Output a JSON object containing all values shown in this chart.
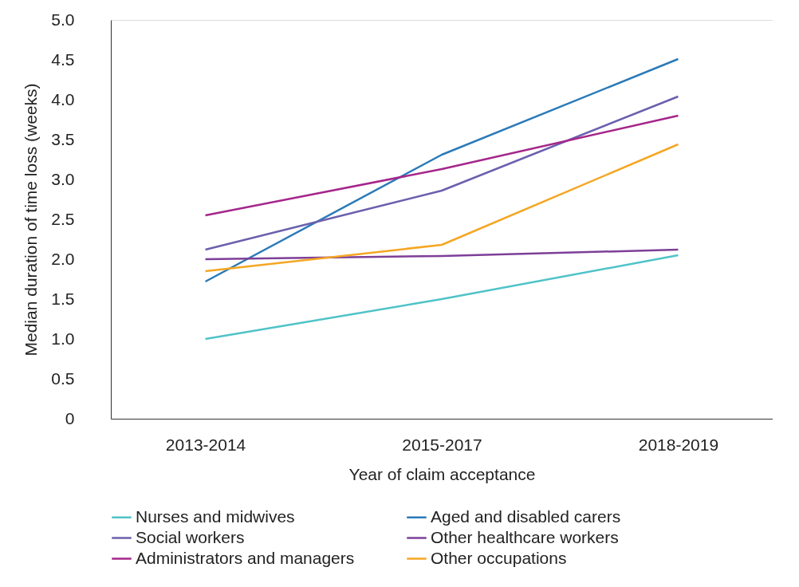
{
  "chart_data": {
    "type": "line",
    "xlabel": "Year of claim acceptance",
    "ylabel": "Median duration of time loss (weeks)",
    "categories": [
      "2013-2014",
      "2015-2017",
      "2018-2019"
    ],
    "ylim": [
      0,
      5
    ],
    "yticks": [
      {
        "value": 0,
        "label": "0"
      },
      {
        "value": 0.5,
        "label": "0.5"
      },
      {
        "value": 1,
        "label": "1.0"
      },
      {
        "value": 1.5,
        "label": "1.5"
      },
      {
        "value": 2,
        "label": "2.0"
      },
      {
        "value": 2.5,
        "label": "2.5"
      },
      {
        "value": 3,
        "label": "3.0"
      },
      {
        "value": 3.5,
        "label": "3.5"
      },
      {
        "value": 4,
        "label": "4.0"
      },
      {
        "value": 4.5,
        "label": "4.5"
      },
      {
        "value": 5,
        "label": "5.0"
      }
    ],
    "grid": false,
    "legend": "bottom",
    "marker": "none",
    "line_style": "solid",
    "series": [
      {
        "name": "Nurses and midwives",
        "color": "#4fc3c8",
        "values": [
          1.0,
          1.5,
          2.05
        ]
      },
      {
        "name": "Aged and disabled carers",
        "color": "#2a7ab8",
        "values": [
          1.72,
          3.31,
          4.51
        ]
      },
      {
        "name": "Social workers",
        "color": "#6a60ad",
        "values": [
          2.12,
          2.86,
          4.04
        ]
      },
      {
        "name": "Other healthcare workers",
        "color": "#7d3f98",
        "values": [
          2.0,
          2.04,
          2.12
        ]
      },
      {
        "name": "Administrators and managers",
        "color": "#a5268a",
        "values": [
          2.55,
          3.13,
          3.8
        ]
      },
      {
        "name": "Other occupations",
        "color": "#f5a623",
        "values": [
          1.85,
          2.18,
          3.44
        ]
      }
    ]
  }
}
